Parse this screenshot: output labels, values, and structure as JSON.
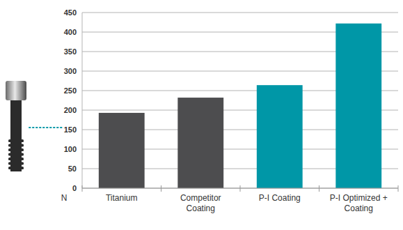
{
  "chart_data": {
    "type": "bar",
    "y_label": "N",
    "categories": [
      "Titanium",
      "Competitor Coating",
      "P-I Coating",
      "P-I Optimized + Coating"
    ],
    "values": [
      193,
      232,
      264,
      422
    ],
    "colors": [
      "#4d4d4f",
      "#4d4d4f",
      "#0097a7",
      "#0097a7"
    ],
    "ylim": [
      0,
      450
    ],
    "yticks": [
      0,
      50,
      100,
      150,
      200,
      250,
      300,
      350,
      400,
      450
    ],
    "grid": true
  }
}
